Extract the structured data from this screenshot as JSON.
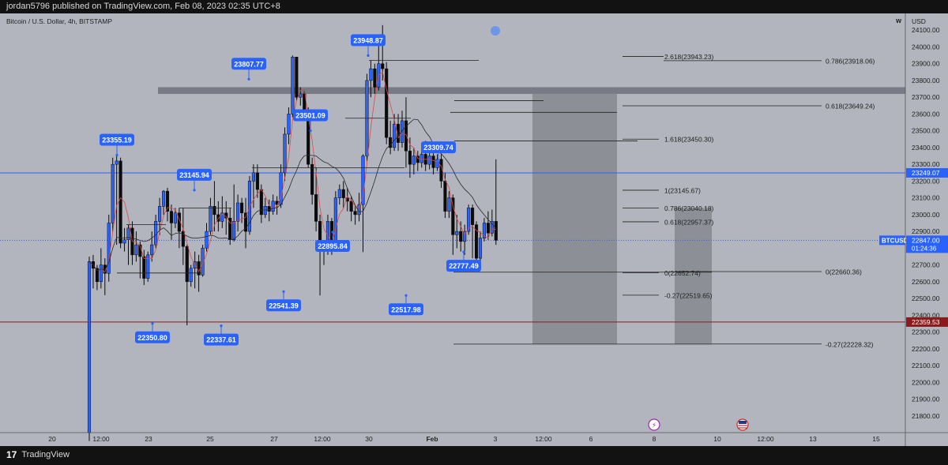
{
  "header": {
    "publisher_line": "jordan5796 published on TradingView.com, Feb 08, 2023 02:35 UTC+8"
  },
  "footer": {
    "brand": "TradingView"
  },
  "chart_data": {
    "type": "candlestick",
    "title": "Bitcoin / U.S. Dollar, 4h, BITSTAMP",
    "symbol": "BTCUSD",
    "currency_label": "USD",
    "toolbar_letter": "W",
    "ylim": [
      21700,
      24200
    ],
    "yticks": [
      21800,
      21900,
      22000,
      22100,
      22200,
      22300,
      22400,
      22500,
      22600,
      22700,
      22800,
      22900,
      23000,
      23100,
      23200,
      23300,
      23400,
      23500,
      23600,
      23700,
      23800,
      23900,
      24000,
      24100
    ],
    "xticks": [
      "20",
      "12:00",
      "23",
      "25",
      "27",
      "12:00",
      "30",
      "Feb",
      "3",
      "12:00",
      "6",
      "8",
      "10",
      "12:00",
      "13",
      "15"
    ],
    "price_badges": [
      {
        "label": "23249.07",
        "price": 23249.07,
        "color": "#2962ff"
      },
      {
        "label": "BTCUSD",
        "sub": "",
        "price": 22847.0,
        "color": "#2962ff"
      },
      {
        "label": "22847.00",
        "sub": "01:24:36",
        "price": 22847.0,
        "color": "#2962ff"
      },
      {
        "label": "22359.53",
        "price": 22359.53,
        "color": "#8b1a1a"
      }
    ],
    "swing_labels": [
      {
        "text": "23355.19",
        "price": 23355.19,
        "pos": "above"
      },
      {
        "text": "23145.94",
        "price": 23145.94,
        "pos": "above"
      },
      {
        "text": "23807.77",
        "price": 23807.77,
        "pos": "above"
      },
      {
        "text": "23501.09",
        "price": 23501.09,
        "pos": "above"
      },
      {
        "text": "23948.87",
        "price": 23948.87,
        "pos": "above"
      },
      {
        "text": "23309.74",
        "price": 23309.74,
        "pos": "above"
      },
      {
        "text": "22350.80",
        "price": 22350.8,
        "pos": "below"
      },
      {
        "text": "22337.61",
        "price": 22337.61,
        "pos": "below"
      },
      {
        "text": "22541.39",
        "price": 22541.39,
        "pos": "below"
      },
      {
        "text": "22895.84",
        "price": 22895.84,
        "pos": "below"
      },
      {
        "text": "22517.98",
        "price": 22517.98,
        "pos": "below"
      },
      {
        "text": "22777.49",
        "price": 22777.49,
        "pos": "below"
      }
    ],
    "fib_labels": [
      {
        "text": "2.618(23943.23)",
        "price": 23943.23
      },
      {
        "text": "0.786(23918.06)",
        "price": 23918.06
      },
      {
        "text": "0.618(23649.24)",
        "price": 23649.24
      },
      {
        "text": "1.618(23450.30)",
        "price": 23450.3
      },
      {
        "text": "1(23145.67)",
        "price": 23145.67
      },
      {
        "text": "0.786(23040.18)",
        "price": 23040.18
      },
      {
        "text": "0.618(22957.37)",
        "price": 22957.37
      },
      {
        "text": "0(22652.74)",
        "price": 22652.74
      },
      {
        "text": "0(22660.36)",
        "price": 22660.36
      },
      {
        "text": "-0.27(22519.65)",
        "price": 22519.65
      },
      {
        "text": "-0.27(22228.32)",
        "price": 22228.32
      }
    ],
    "zones": [
      {
        "name": "resistance-band",
        "from": 23720,
        "to": 23760
      },
      {
        "name": "short-zone-1",
        "from": 22228,
        "to": 23720
      },
      {
        "name": "short-zone-2",
        "from": 22228,
        "to": 23040
      }
    ],
    "candles": [
      [
        21700,
        22720,
        21650,
        22750
      ],
      [
        22720,
        22680,
        22560,
        22760
      ],
      [
        22680,
        22600,
        22550,
        22700
      ],
      [
        22600,
        22700,
        22560,
        22800
      ],
      [
        22700,
        22650,
        22520,
        22740
      ],
      [
        22650,
        22950,
        22600,
        23000
      ],
      [
        22950,
        23300,
        22900,
        23340
      ],
      [
        23300,
        23320,
        22820,
        23350
      ],
      [
        23320,
        22830,
        22800,
        23340
      ],
      [
        22830,
        22850,
        22780,
        22920
      ],
      [
        22850,
        22920,
        22700,
        22940
      ],
      [
        22920,
        22760,
        22700,
        22960
      ],
      [
        22760,
        22820,
        22720,
        22900
      ],
      [
        22820,
        22750,
        22620,
        22840
      ],
      [
        22750,
        22620,
        22580,
        22790
      ],
      [
        22620,
        22760,
        22600,
        22780
      ],
      [
        22760,
        22820,
        22720,
        22900
      ],
      [
        22820,
        22960,
        22800,
        23000
      ],
      [
        22960,
        23050,
        22880,
        23100
      ],
      [
        23050,
        23140,
        23000,
        23146
      ],
      [
        23140,
        23020,
        22960,
        23160
      ],
      [
        23020,
        22950,
        22850,
        23060
      ],
      [
        22950,
        23010,
        22920,
        23040
      ],
      [
        23010,
        22900,
        22800,
        23040
      ],
      [
        22900,
        22810,
        22700,
        23040
      ],
      [
        22810,
        22600,
        22340,
        22820
      ],
      [
        22600,
        22680,
        22570,
        22700
      ],
      [
        22680,
        22720,
        22560,
        22780
      ],
      [
        22720,
        22640,
        22540,
        22760
      ],
      [
        22640,
        22800,
        22630,
        22820
      ],
      [
        22800,
        22900,
        22780,
        22950
      ],
      [
        22900,
        23050,
        22880,
        23100
      ],
      [
        23050,
        23000,
        22900,
        23200
      ],
      [
        23000,
        22960,
        22900,
        23080
      ],
      [
        22960,
        23010,
        22920,
        23110
      ],
      [
        23010,
        22980,
        22880,
        23080
      ],
      [
        22980,
        22850,
        22820,
        23040
      ],
      [
        22850,
        22960,
        22840,
        23180
      ],
      [
        22960,
        23070,
        22900,
        23120
      ],
      [
        23070,
        23010,
        22950,
        23100
      ],
      [
        23010,
        22900,
        22800,
        23100
      ],
      [
        22900,
        23200,
        22880,
        23230
      ],
      [
        23200,
        23250,
        23040,
        23300
      ],
      [
        23250,
        23150,
        23100,
        23300
      ],
      [
        23150,
        23000,
        22950,
        23180
      ],
      [
        23000,
        23050,
        22980,
        23100
      ],
      [
        23050,
        23020,
        22960,
        23090
      ],
      [
        23020,
        23080,
        23000,
        23120
      ],
      [
        23080,
        23060,
        23000,
        23110
      ],
      [
        23060,
        23250,
        23040,
        23300
      ],
      [
        23250,
        23480,
        23200,
        23520
      ],
      [
        23480,
        23600,
        23420,
        23640
      ],
      [
        23600,
        23940,
        23580,
        23949
      ],
      [
        23940,
        23700,
        23680,
        23940
      ],
      [
        23700,
        23720,
        23650,
        23760
      ],
      [
        23720,
        23620,
        23560,
        23740
      ],
      [
        23620,
        23300,
        23280,
        23640
      ],
      [
        23300,
        23120,
        23060,
        23340
      ],
      [
        23120,
        22960,
        22900,
        23280
      ],
      [
        22960,
        22780,
        22518,
        23000
      ],
      [
        22780,
        22800,
        22700,
        22840
      ],
      [
        22800,
        22960,
        22760,
        23000
      ],
      [
        22960,
        22800,
        22760,
        22980
      ],
      [
        22800,
        23100,
        22790,
        23140
      ],
      [
        23100,
        23150,
        23060,
        23180
      ],
      [
        23150,
        23100,
        23040,
        23200
      ],
      [
        23100,
        23080,
        23020,
        23160
      ],
      [
        23080,
        23020,
        22960,
        23110
      ],
      [
        23020,
        23000,
        22940,
        23050
      ],
      [
        23000,
        23060,
        22960,
        23130
      ],
      [
        23060,
        23350,
        22777,
        23360
      ],
      [
        23350,
        23800,
        23320,
        23840
      ],
      [
        23800,
        23870,
        23700,
        23920
      ],
      [
        23870,
        23760,
        23720,
        23900
      ],
      [
        23760,
        23900,
        23740,
        24060
      ],
      [
        23900,
        23870,
        23800,
        24130
      ],
      [
        23870,
        23460,
        23420,
        23910
      ],
      [
        23460,
        23400,
        23360,
        23560
      ],
      [
        23400,
        23540,
        23380,
        23600
      ],
      [
        23540,
        23430,
        23380,
        23600
      ],
      [
        23430,
        23560,
        23400,
        23620
      ],
      [
        23560,
        23380,
        23280,
        23700
      ],
      [
        23380,
        23300,
        23220,
        23460
      ],
      [
        23300,
        23350,
        23240,
        23400
      ],
      [
        23350,
        23310,
        23260,
        23380
      ],
      [
        23310,
        23360,
        23280,
        23420
      ],
      [
        23360,
        23300,
        23260,
        23440
      ],
      [
        23300,
        23350,
        23270,
        23400
      ],
      [
        23350,
        23280,
        23240,
        23420
      ],
      [
        23280,
        23330,
        23260,
        23360
      ],
      [
        23330,
        23200,
        23160,
        23360
      ],
      [
        23200,
        23020,
        22980,
        23250
      ],
      [
        23020,
        23100,
        22980,
        23140
      ],
      [
        23100,
        22880,
        22760,
        23120
      ],
      [
        22880,
        22900,
        22800,
        23000
      ],
      [
        22900,
        22840,
        22780,
        22960
      ],
      [
        22840,
        22900,
        22760,
        22940
      ],
      [
        22900,
        23040,
        22880,
        23060
      ],
      [
        23040,
        22940,
        22740,
        23060
      ],
      [
        22940,
        22740,
        22680,
        22960
      ],
      [
        22740,
        22860,
        22720,
        22900
      ],
      [
        22860,
        22950,
        22840,
        22980
      ],
      [
        22950,
        22890,
        22850,
        23020
      ],
      [
        22890,
        22960,
        22870,
        23030
      ],
      [
        22960,
        22847,
        22820,
        23330
      ]
    ]
  }
}
